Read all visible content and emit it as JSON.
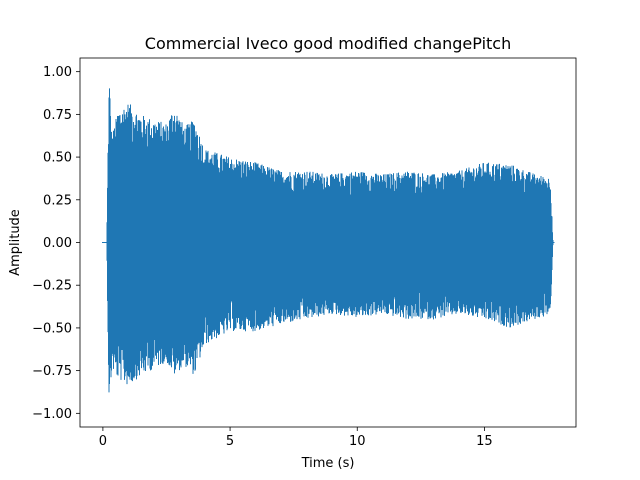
{
  "chart_data": {
    "type": "line",
    "title": "Commercial Iveco good modified changePitch",
    "xlabel": "Time (s)",
    "ylabel": "Amplitude",
    "xlim": [
      -0.9,
      18.6
    ],
    "ylim": [
      -1.08,
      1.08
    ],
    "xticks": [
      0,
      5,
      10,
      15
    ],
    "xtick_labels": [
      "0",
      "5",
      "10",
      "15"
    ],
    "yticks": [
      -1.0,
      -0.75,
      -0.5,
      -0.25,
      0.0,
      0.25,
      0.5,
      0.75,
      1.0
    ],
    "ytick_labels": [
      "−1.00",
      "−0.75",
      "−0.50",
      "−0.25",
      "0.00",
      "0.25",
      "0.50",
      "0.75",
      "1.00"
    ],
    "grid": false,
    "series": [
      {
        "color": "#1f77b4",
        "description": "dense audio waveform; envelope listed as [time_s, max_amplitude, min_amplitude]",
        "envelope": [
          [
            0.0,
            0.0,
            0.0
          ],
          [
            0.15,
            0.0,
            0.0
          ],
          [
            0.2,
            0.55,
            -0.55
          ],
          [
            0.25,
            0.98,
            -0.99
          ],
          [
            0.35,
            0.62,
            -0.74
          ],
          [
            0.6,
            0.78,
            -0.8
          ],
          [
            1.0,
            0.82,
            -0.84
          ],
          [
            1.5,
            0.75,
            -0.78
          ],
          [
            2.0,
            0.72,
            -0.74
          ],
          [
            2.5,
            0.7,
            -0.7
          ],
          [
            2.8,
            0.8,
            -0.78
          ],
          [
            3.2,
            0.68,
            -0.72
          ],
          [
            3.6,
            0.72,
            -0.78
          ],
          [
            4.0,
            0.55,
            -0.6
          ],
          [
            5.0,
            0.5,
            -0.52
          ],
          [
            6.0,
            0.47,
            -0.52
          ],
          [
            7.0,
            0.42,
            -0.48
          ],
          [
            8.0,
            0.42,
            -0.45
          ],
          [
            9.0,
            0.4,
            -0.42
          ],
          [
            10.0,
            0.42,
            -0.44
          ],
          [
            11.0,
            0.4,
            -0.42
          ],
          [
            12.0,
            0.42,
            -0.45
          ],
          [
            13.0,
            0.4,
            -0.45
          ],
          [
            14.0,
            0.42,
            -0.42
          ],
          [
            15.0,
            0.47,
            -0.45
          ],
          [
            16.0,
            0.46,
            -0.5
          ],
          [
            17.0,
            0.4,
            -0.45
          ],
          [
            17.6,
            0.38,
            -0.42
          ],
          [
            17.7,
            0.0,
            0.0
          ]
        ]
      }
    ]
  }
}
